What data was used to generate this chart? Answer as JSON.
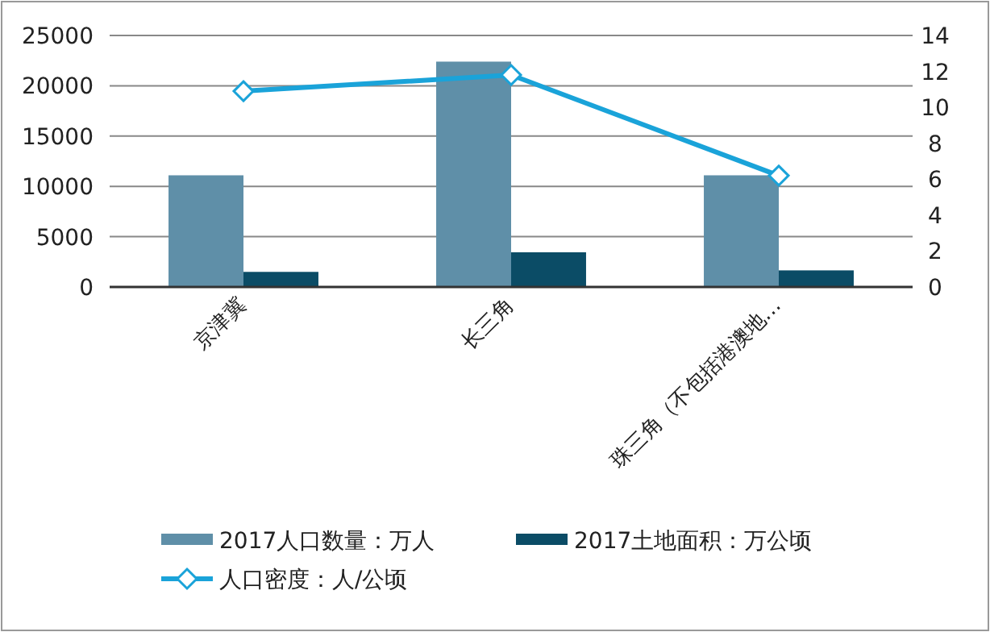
{
  "chart_data": {
    "type": "bar",
    "categories": [
      "京津冀",
      "长三角",
      "珠三角（不包括港澳地…"
    ],
    "series": [
      {
        "name": "2017人口数量：万人",
        "color": "#5f8fa8",
        "values": [
          11100,
          22400,
          11100
        ]
      },
      {
        "name": "2017土地面积：万公顷",
        "color": "#0b4c66",
        "values": [
          1500,
          3450,
          1650
        ]
      },
      {
        "name": "人口密度：人/公顷",
        "type": "line",
        "axis": "y2",
        "color": "#1aa3d9",
        "marker": "diamond",
        "values": [
          10.9,
          11.8,
          6.2
        ]
      }
    ],
    "ylim": [
      0,
      25000
    ],
    "yticks": [
      0,
      5000,
      10000,
      15000,
      20000,
      25000
    ],
    "y2lim": [
      0,
      14
    ],
    "y2ticks": [
      0,
      2,
      4,
      6,
      8,
      10,
      12,
      14
    ],
    "grid": "y",
    "legend": "bottom"
  }
}
